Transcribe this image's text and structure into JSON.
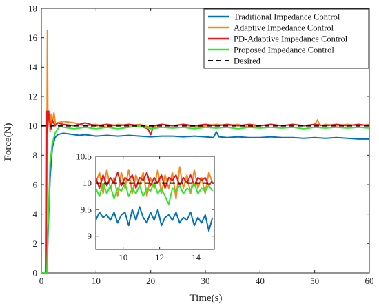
{
  "chart_data": {
    "type": "line",
    "xlabel": "Time(s)",
    "ylabel": "Force(N)",
    "xlim": [
      0,
      60
    ],
    "ylim": [
      0,
      18
    ],
    "xticks": [
      0,
      10,
      20,
      30,
      40,
      50,
      60
    ],
    "yticks": [
      0,
      2,
      4,
      6,
      8,
      10,
      12,
      14,
      16,
      18
    ],
    "grid": false,
    "legend_position": "top-right",
    "series": [
      {
        "name": "Traditional Impedance Control",
        "color": "#0072BD",
        "style": "solid",
        "x": [
          0,
          1,
          1.3,
          1.6,
          2,
          2.5,
          3,
          4,
          5,
          6,
          7,
          8,
          10,
          12,
          14,
          16,
          18,
          20,
          22,
          24,
          26,
          28,
          30,
          31.5,
          32,
          32.5,
          34,
          36,
          38,
          40,
          42,
          44,
          46,
          48,
          50,
          52,
          54,
          56,
          58,
          60
        ],
        "y": [
          0,
          0,
          3.5,
          6.5,
          8.5,
          9.2,
          9.4,
          9.5,
          9.45,
          9.4,
          9.35,
          9.4,
          9.3,
          9.35,
          9.3,
          9.35,
          9.3,
          9.25,
          9.3,
          9.3,
          9.25,
          9.3,
          9.25,
          9.2,
          9.6,
          9.25,
          9.2,
          9.25,
          9.2,
          9.2,
          9.25,
          9.2,
          9.2,
          9.15,
          9.2,
          9.15,
          9.2,
          9.15,
          9.1,
          9.1
        ]
      },
      {
        "name": "Adaptive Impedance Control",
        "color": "#EE8B1E",
        "style": "solid",
        "x": [
          0,
          0.9,
          1.0,
          1.1,
          1.2,
          1.4,
          1.6,
          1.8,
          2.0,
          2.3,
          2.6,
          3,
          4,
          6,
          8,
          10,
          12,
          14,
          16,
          18,
          20,
          22,
          24,
          26,
          28,
          30,
          32,
          34,
          36,
          38,
          40,
          42,
          44,
          46,
          48,
          50,
          50.5,
          51,
          52,
          54,
          56,
          58,
          60
        ],
        "y": [
          0,
          0,
          8,
          16.5,
          10,
          11,
          9.6,
          10.8,
          10.2,
          10.9,
          10.1,
          10.2,
          10.3,
          10.2,
          10.0,
          10.1,
          9.9,
          10.1,
          10.0,
          10.1,
          9.9,
          10.1,
          10.0,
          10.1,
          9.9,
          10.0,
          10.1,
          10.0,
          10.1,
          9.9,
          10.0,
          10.1,
          10.0,
          10.1,
          10.0,
          10.1,
          10.4,
          10.0,
          10.1,
          10.0,
          10.1,
          10.0,
          10.1
        ]
      },
      {
        "name": "PD-Adaptive Impedance Control",
        "color": "#E8161E",
        "style": "solid",
        "x": [
          0,
          0.9,
          1.0,
          1.1,
          1.3,
          1.5,
          1.8,
          2.0,
          2.5,
          3,
          4,
          6,
          8,
          10,
          12,
          14,
          16,
          18,
          19.5,
          20,
          20.5,
          22,
          24,
          26,
          28,
          30,
          32,
          34,
          36,
          38,
          40,
          42,
          44,
          46,
          48,
          50,
          52,
          54,
          56,
          58,
          60
        ],
        "y": [
          0,
          0,
          11,
          9.5,
          11,
          10.4,
          9.8,
          10.4,
          10.0,
          10.2,
          10.1,
          10.0,
          10.2,
          10.0,
          10.1,
          10.0,
          10.1,
          10.0,
          9.8,
          9.4,
          10.0,
          10.1,
          10.0,
          10.1,
          10.0,
          10.1,
          10.0,
          10.1,
          10.0,
          10.1,
          10.0,
          10.1,
          10.0,
          10.1,
          10.0,
          10.1,
          10.0,
          10.1,
          10.0,
          10.1,
          10.0
        ]
      },
      {
        "name": "Proposed Impedance Control",
        "color": "#2EE82E",
        "style": "solid",
        "x": [
          0,
          1,
          1.3,
          1.6,
          2,
          2.5,
          3,
          3.5,
          4,
          6,
          8,
          10,
          12,
          14,
          16,
          18,
          20,
          22,
          24,
          26,
          28,
          30,
          32,
          34,
          36,
          38,
          40,
          42,
          44,
          46,
          48,
          50,
          52,
          54,
          56,
          58,
          60
        ],
        "y": [
          0,
          0,
          4,
          7.5,
          8.8,
          9.5,
          9.8,
          10.0,
          9.9,
          9.8,
          9.9,
          9.8,
          9.9,
          9.8,
          9.9,
          10.0,
          9.8,
          9.9,
          9.85,
          9.9,
          9.8,
          9.9,
          9.85,
          9.9,
          9.8,
          9.9,
          9.85,
          9.9,
          9.85,
          9.9,
          9.8,
          9.9,
          9.85,
          9.9,
          9.85,
          9.9,
          9.85
        ]
      },
      {
        "name": "Desired",
        "color": "#000000",
        "style": "dashed",
        "x": [
          0,
          60
        ],
        "y": [
          10,
          10
        ]
      }
    ],
    "inset": {
      "xlim": [
        8.5,
        15
      ],
      "ylim": [
        8.75,
        10.5
      ],
      "xticks": [
        10,
        12,
        14
      ],
      "yticks": [
        9,
        9.5,
        10,
        10.5
      ],
      "series": [
        {
          "name": "Traditional Impedance Control",
          "color": "#0072BD",
          "x": [
            8.5,
            8.7,
            8.9,
            9.1,
            9.3,
            9.5,
            9.7,
            9.9,
            10.1,
            10.3,
            10.5,
            10.7,
            10.9,
            11.1,
            11.3,
            11.5,
            11.7,
            11.9,
            12.1,
            12.3,
            12.5,
            12.7,
            12.9,
            13.1,
            13.3,
            13.5,
            13.7,
            13.9,
            14.1,
            14.3,
            14.5,
            14.7,
            14.9
          ],
          "y": [
            9.3,
            9.45,
            9.35,
            9.4,
            9.3,
            9.45,
            9.25,
            9.4,
            9.45,
            9.2,
            9.5,
            9.3,
            9.55,
            9.35,
            9.25,
            9.45,
            9.3,
            9.5,
            9.2,
            9.35,
            9.4,
            9.3,
            9.45,
            9.25,
            9.35,
            9.3,
            9.45,
            9.2,
            9.35,
            9.25,
            9.4,
            9.1,
            9.35
          ]
        },
        {
          "name": "Adaptive Impedance Control",
          "color": "#EE8B1E",
          "x": [
            8.5,
            8.7,
            8.9,
            9.1,
            9.3,
            9.5,
            9.7,
            9.9,
            10.1,
            10.3,
            10.5,
            10.7,
            10.9,
            11.1,
            11.3,
            11.5,
            11.7,
            11.9,
            12.1,
            12.3,
            12.5,
            12.7,
            12.9,
            13.1,
            13.3,
            13.5,
            13.7,
            13.9,
            14.1,
            14.3,
            14.5,
            14.7,
            14.9
          ],
          "y": [
            10.0,
            10.2,
            9.8,
            10.25,
            9.9,
            10.1,
            9.75,
            10.2,
            9.9,
            10.25,
            9.8,
            10.15,
            9.95,
            10.2,
            9.75,
            10.1,
            9.9,
            10.25,
            9.8,
            10.15,
            9.9,
            10.2,
            9.7,
            10.3,
            9.9,
            10.15,
            9.8,
            10.25,
            9.9,
            10.1,
            9.8,
            10.2,
            10.0
          ]
        },
        {
          "name": "PD-Adaptive Impedance Control",
          "color": "#E8161E",
          "x": [
            8.5,
            8.7,
            8.9,
            9.1,
            9.3,
            9.5,
            9.7,
            9.9,
            10.1,
            10.3,
            10.5,
            10.7,
            10.9,
            11.1,
            11.3,
            11.5,
            11.7,
            11.9,
            12.1,
            12.3,
            12.5,
            12.7,
            12.9,
            13.1,
            13.3,
            13.5,
            13.7,
            13.9,
            14.1,
            14.3,
            14.5,
            14.7,
            14.9
          ],
          "y": [
            10.1,
            9.9,
            10.15,
            9.95,
            10.1,
            10.0,
            10.2,
            9.95,
            10.1,
            10.05,
            10.15,
            9.9,
            10.1,
            10.05,
            10.2,
            9.95,
            10.1,
            10.0,
            10.15,
            9.9,
            10.1,
            10.05,
            10.15,
            9.95,
            10.1,
            10.0,
            10.15,
            9.95,
            10.1,
            10.05,
            10.1,
            9.95,
            10.05
          ]
        },
        {
          "name": "Proposed Impedance Control",
          "color": "#2EE82E",
          "x": [
            8.5,
            8.7,
            8.9,
            9.1,
            9.3,
            9.5,
            9.7,
            9.9,
            10.1,
            10.3,
            10.5,
            10.7,
            10.9,
            11.1,
            11.3,
            11.5,
            11.7,
            11.9,
            12.1,
            12.3,
            12.5,
            12.7,
            12.9,
            13.1,
            13.3,
            13.5,
            13.7,
            13.9,
            14.1,
            14.3,
            14.5,
            14.7,
            14.9
          ],
          "y": [
            9.9,
            9.75,
            10.0,
            9.8,
            9.95,
            9.7,
            9.9,
            9.85,
            10.0,
            9.75,
            9.9,
            9.8,
            9.95,
            9.75,
            9.9,
            9.85,
            10.0,
            9.8,
            9.9,
            9.75,
            9.6,
            9.9,
            9.85,
            9.95,
            9.8,
            9.9,
            9.85,
            10.0,
            9.8,
            9.9,
            9.85,
            9.95,
            9.85
          ]
        },
        {
          "name": "Desired",
          "color": "#000000",
          "x": [
            8.5,
            15
          ],
          "y": [
            10,
            10
          ]
        }
      ]
    }
  }
}
